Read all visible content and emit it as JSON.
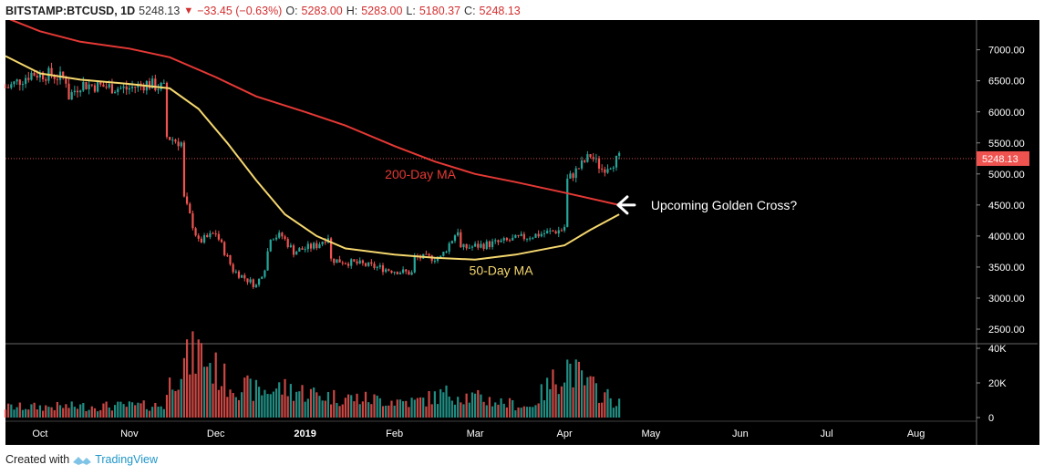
{
  "header": {
    "symbol": "BITSTAMP:BTCUSD, 1D",
    "last": "5248.13",
    "change": "−33.45 (−0.63%)",
    "open_label": "O:",
    "open": "5283.00",
    "high_label": "H:",
    "high": "5283.00",
    "low_label": "L:",
    "low": "5180.37",
    "close_label": "C:",
    "close": "5248.13"
  },
  "footer": {
    "created_with": "Created with",
    "brand": "TradingView"
  },
  "colors": {
    "background": "#000000",
    "up": "#26a69a",
    "down": "#ef5350",
    "ma200": "#e53935",
    "ma50": "#f5d76e",
    "axis_text": "#ffffff",
    "price_tag": "#ef5350"
  },
  "chart_data": {
    "type": "candlestick",
    "title": "",
    "y_axis": {
      "ticks": [
        "7000.00",
        "6500.00",
        "6000.00",
        "5500.00",
        "5000.00",
        "4500.00",
        "4000.00",
        "3500.00",
        "3000.00",
        "2500.00"
      ],
      "ylim": [
        2280,
        7480
      ]
    },
    "volume_axis": {
      "ticks": [
        "40K",
        "20K",
        "0"
      ],
      "ylim": [
        0,
        40000
      ]
    },
    "x_axis": {
      "ticks": [
        "Oct",
        "Nov",
        "Dec",
        "2019",
        "Feb",
        "Mar",
        "Apr",
        "May",
        "Jun",
        "Jul",
        "Aug"
      ],
      "range": [
        "2018-09-19",
        "2019-08-22"
      ]
    },
    "last_price_tag": "5248.13",
    "price_anchors": [
      [
        "2018-09-20",
        6400
      ],
      [
        "2018-09-28",
        6620
      ],
      [
        "2018-10-05",
        6600
      ],
      [
        "2018-10-10",
        6520
      ],
      [
        "2018-10-11",
        6250
      ],
      [
        "2018-10-15",
        6450
      ],
      [
        "2018-10-31",
        6370
      ],
      [
        "2018-11-07",
        6460
      ],
      [
        "2018-11-13",
        6380
      ],
      [
        "2018-11-14",
        5600
      ],
      [
        "2018-11-19",
        5500
      ],
      [
        "2018-11-20",
        4600
      ],
      [
        "2018-11-25",
        3900
      ],
      [
        "2018-12-01",
        4050
      ],
      [
        "2018-12-07",
        3450
      ],
      [
        "2018-12-15",
        3200
      ],
      [
        "2018-12-18",
        3500
      ],
      [
        "2018-12-20",
        4000
      ],
      [
        "2018-12-24",
        4000
      ],
      [
        "2018-12-28",
        3750
      ],
      [
        "2019-01-05",
        3850
      ],
      [
        "2019-01-09",
        4000
      ],
      [
        "2019-01-10",
        3620
      ],
      [
        "2019-01-20",
        3550
      ],
      [
        "2019-01-31",
        3450
      ],
      [
        "2019-02-07",
        3400
      ],
      [
        "2019-02-08",
        3650
      ],
      [
        "2019-02-17",
        3650
      ],
      [
        "2019-02-23",
        4100
      ],
      [
        "2019-02-24",
        3800
      ],
      [
        "2019-03-10",
        3900
      ],
      [
        "2019-03-20",
        4000
      ],
      [
        "2019-03-31",
        4100
      ],
      [
        "2019-04-01",
        4150
      ],
      [
        "2019-04-02",
        4900
      ],
      [
        "2019-04-05",
        5050
      ],
      [
        "2019-04-10",
        5300
      ],
      [
        "2019-04-14",
        5080
      ],
      [
        "2019-04-20",
        5250
      ]
    ],
    "series": [
      {
        "name": "200-Day MA",
        "type": "line",
        "points": [
          [
            "2018-09-19",
            7520
          ],
          [
            "2018-10-01",
            7300
          ],
          [
            "2018-10-15",
            7130
          ],
          [
            "2018-11-01",
            7020
          ],
          [
            "2018-11-15",
            6880
          ],
          [
            "2018-12-01",
            6560
          ],
          [
            "2018-12-15",
            6250
          ],
          [
            "2019-01-01",
            6000
          ],
          [
            "2019-01-15",
            5780
          ],
          [
            "2019-02-01",
            5450
          ],
          [
            "2019-02-15",
            5200
          ],
          [
            "2019-03-01",
            5000
          ],
          [
            "2019-03-15",
            4870
          ],
          [
            "2019-04-01",
            4700
          ],
          [
            "2019-04-20",
            4500
          ]
        ]
      },
      {
        "name": "50-Day MA",
        "type": "line",
        "points": [
          [
            "2018-09-19",
            6900
          ],
          [
            "2018-10-01",
            6620
          ],
          [
            "2018-10-15",
            6520
          ],
          [
            "2018-11-01",
            6450
          ],
          [
            "2018-11-15",
            6380
          ],
          [
            "2018-11-25",
            6050
          ],
          [
            "2018-12-05",
            5500
          ],
          [
            "2018-12-15",
            4900
          ],
          [
            "2018-12-25",
            4350
          ],
          [
            "2019-01-05",
            4000
          ],
          [
            "2019-01-15",
            3800
          ],
          [
            "2019-02-01",
            3700
          ],
          [
            "2019-02-15",
            3650
          ],
          [
            "2019-03-01",
            3620
          ],
          [
            "2019-03-15",
            3700
          ],
          [
            "2019-04-01",
            3850
          ],
          [
            "2019-04-10",
            4100
          ],
          [
            "2019-04-20",
            4350
          ]
        ]
      }
    ],
    "volume_anchors": [
      [
        "2018-09-19",
        6000
      ],
      [
        "2018-11-13",
        7000
      ],
      [
        "2018-11-16",
        25000
      ],
      [
        "2018-11-25",
        38000
      ],
      [
        "2018-12-05",
        20000
      ],
      [
        "2018-12-16",
        15000
      ],
      [
        "2018-12-24",
        17000
      ],
      [
        "2019-01-10",
        12000
      ],
      [
        "2019-02-08",
        9000
      ],
      [
        "2019-02-20",
        14000
      ],
      [
        "2019-03-20",
        6000
      ],
      [
        "2019-04-02",
        30000
      ],
      [
        "2019-04-08",
        20000
      ],
      [
        "2019-04-20",
        8000
      ]
    ],
    "annotations": [
      {
        "text": "200-Day MA",
        "at": [
          "2019-02-10",
          5000
        ],
        "color": "#e53935"
      },
      {
        "text": "50-Day MA",
        "at": [
          "2019-03-10",
          3450
        ],
        "color": "#f5d76e"
      },
      {
        "text": "Upcoming Golden Cross?",
        "at": [
          "2019-05-01",
          4500
        ],
        "color": "#ffffff",
        "arrow": "left"
      }
    ]
  }
}
